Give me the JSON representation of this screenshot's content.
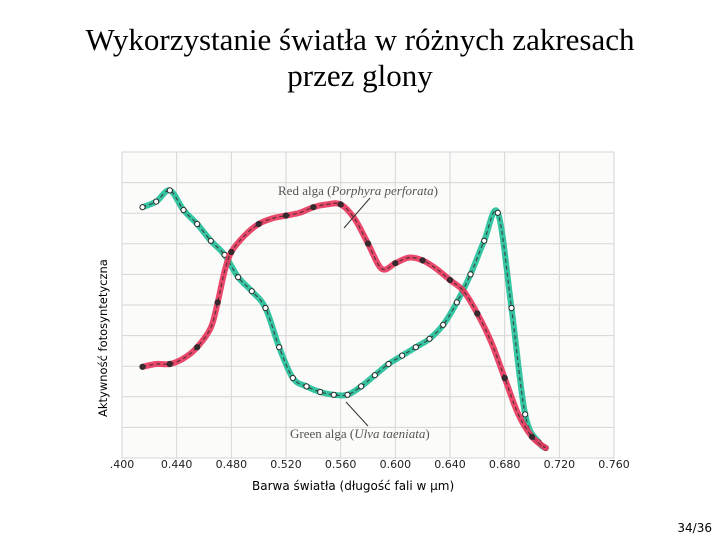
{
  "slide": {
    "title_line1": "Wykorzystanie światła w różnych zakresach",
    "title_line2": "przez glony",
    "page_number": "34/36"
  },
  "chart_data": {
    "type": "line",
    "xlabel": "Barwa światła (długość fali w μm)",
    "ylabel": "Aktywność fotosyntetyczna",
    "xlim": [
      0.4,
      0.76
    ],
    "ylim": [
      0,
      1
    ],
    "grid": true,
    "x_ticks": [
      ".400",
      "0.440",
      "0.480",
      "0.520",
      "0.560",
      "0.600",
      "0.640",
      "0.680",
      "0.720",
      "0.760"
    ],
    "series": [
      {
        "name": "Red alga",
        "name_italic": "Porphyra perforata",
        "color": "#e8345a",
        "x": [
          0.415,
          0.425,
          0.435,
          0.445,
          0.455,
          0.465,
          0.47,
          0.475,
          0.48,
          0.49,
          0.5,
          0.51,
          0.52,
          0.53,
          0.54,
          0.55,
          0.56,
          0.57,
          0.58,
          0.59,
          0.6,
          0.61,
          0.62,
          0.63,
          0.64,
          0.65,
          0.66,
          0.67,
          0.68,
          0.69,
          0.7,
          0.71
        ],
        "y": [
          0.29,
          0.3,
          0.3,
          0.32,
          0.36,
          0.43,
          0.52,
          0.63,
          0.7,
          0.76,
          0.8,
          0.82,
          0.83,
          0.84,
          0.86,
          0.87,
          0.87,
          0.82,
          0.73,
          0.64,
          0.66,
          0.68,
          0.67,
          0.64,
          0.6,
          0.56,
          0.48,
          0.38,
          0.25,
          0.12,
          0.04,
          0.0
        ]
      },
      {
        "name": "Green alga",
        "name_italic": "Ulva taeniata",
        "color": "#1fbf98",
        "x": [
          0.415,
          0.425,
          0.435,
          0.445,
          0.455,
          0.465,
          0.475,
          0.485,
          0.495,
          0.505,
          0.515,
          0.525,
          0.535,
          0.545,
          0.555,
          0.565,
          0.575,
          0.585,
          0.595,
          0.605,
          0.615,
          0.625,
          0.635,
          0.645,
          0.655,
          0.665,
          0.675,
          0.685,
          0.695,
          0.705,
          0.71
        ],
        "y": [
          0.86,
          0.88,
          0.92,
          0.85,
          0.8,
          0.74,
          0.69,
          0.61,
          0.56,
          0.5,
          0.36,
          0.25,
          0.22,
          0.2,
          0.19,
          0.19,
          0.22,
          0.26,
          0.3,
          0.33,
          0.36,
          0.39,
          0.44,
          0.52,
          0.62,
          0.74,
          0.84,
          0.5,
          0.12,
          0.02,
          0.0
        ]
      }
    ]
  }
}
